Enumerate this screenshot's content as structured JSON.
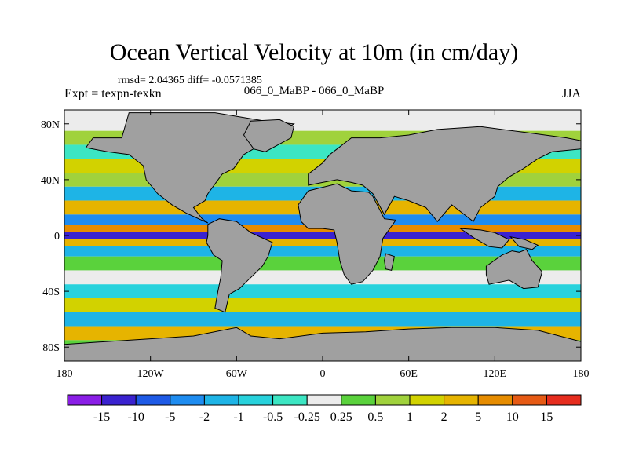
{
  "chart_data": {
    "type": "heatmap",
    "title": "Ocean Vertical Velocity at 10m (in cm/day)",
    "stats_line": "rmsd= 2.04365 diff= -0.0571385",
    "left_label": "Expt = texpn-texkn",
    "center_label": "066_0_MaBP - 066_0_MaBP",
    "season_label": "JJA",
    "xlim": [
      -180,
      180
    ],
    "ylim": [
      -90,
      90
    ],
    "x_ticks": [
      {
        "value": -180,
        "label": "180"
      },
      {
        "value": -120,
        "label": "120W"
      },
      {
        "value": -60,
        "label": "60W"
      },
      {
        "value": 0,
        "label": "0"
      },
      {
        "value": 60,
        "label": "60E"
      },
      {
        "value": 120,
        "label": "120E"
      },
      {
        "value": 180,
        "label": "180"
      }
    ],
    "y_ticks": [
      {
        "value": 80,
        "label": "80N"
      },
      {
        "value": 40,
        "label": "40N"
      },
      {
        "value": 0,
        "label": "0"
      },
      {
        "value": -40,
        "label": "40S"
      },
      {
        "value": -80,
        "label": "80S"
      }
    ],
    "colorbar": {
      "colors": [
        "#8a1ee6",
        "#3a22cf",
        "#1e5ae6",
        "#1e8cf0",
        "#1eb4e6",
        "#28d2dc",
        "#3ce6c3",
        "#ececec",
        "#5ad23c",
        "#a0d23c",
        "#d2d200",
        "#e6b400",
        "#e68c00",
        "#e65a14",
        "#e62d1e"
      ],
      "labels": [
        "-15",
        "-10",
        "-5",
        "-2",
        "-1",
        "-0.5",
        "-0.25",
        "0.25",
        "0.5",
        "1",
        "2",
        "5",
        "10",
        "15"
      ]
    },
    "field_bands": [
      {
        "lat": 80,
        "value": 0.2
      },
      {
        "lat": 70,
        "value": 0.6
      },
      {
        "lat": 60,
        "value": -0.4
      },
      {
        "lat": 50,
        "value": 1.5
      },
      {
        "lat": 40,
        "value": 0.8
      },
      {
        "lat": 30,
        "value": -1.2
      },
      {
        "lat": 20,
        "value": 3
      },
      {
        "lat": 10,
        "value": -3
      },
      {
        "lat": 5,
        "value": 6
      },
      {
        "lat": 0,
        "value": -12
      },
      {
        "lat": -5,
        "value": 4
      },
      {
        "lat": -10,
        "value": -2
      },
      {
        "lat": -20,
        "value": 0.4
      },
      {
        "lat": -30,
        "value": 0.1
      },
      {
        "lat": -40,
        "value": -0.6
      },
      {
        "lat": -50,
        "value": 1.2
      },
      {
        "lat": -60,
        "value": -1.5
      },
      {
        "lat": -70,
        "value": 2.5
      },
      {
        "lat": -80,
        "value": 0.3
      }
    ],
    "land_color": "#a0a0a0"
  }
}
